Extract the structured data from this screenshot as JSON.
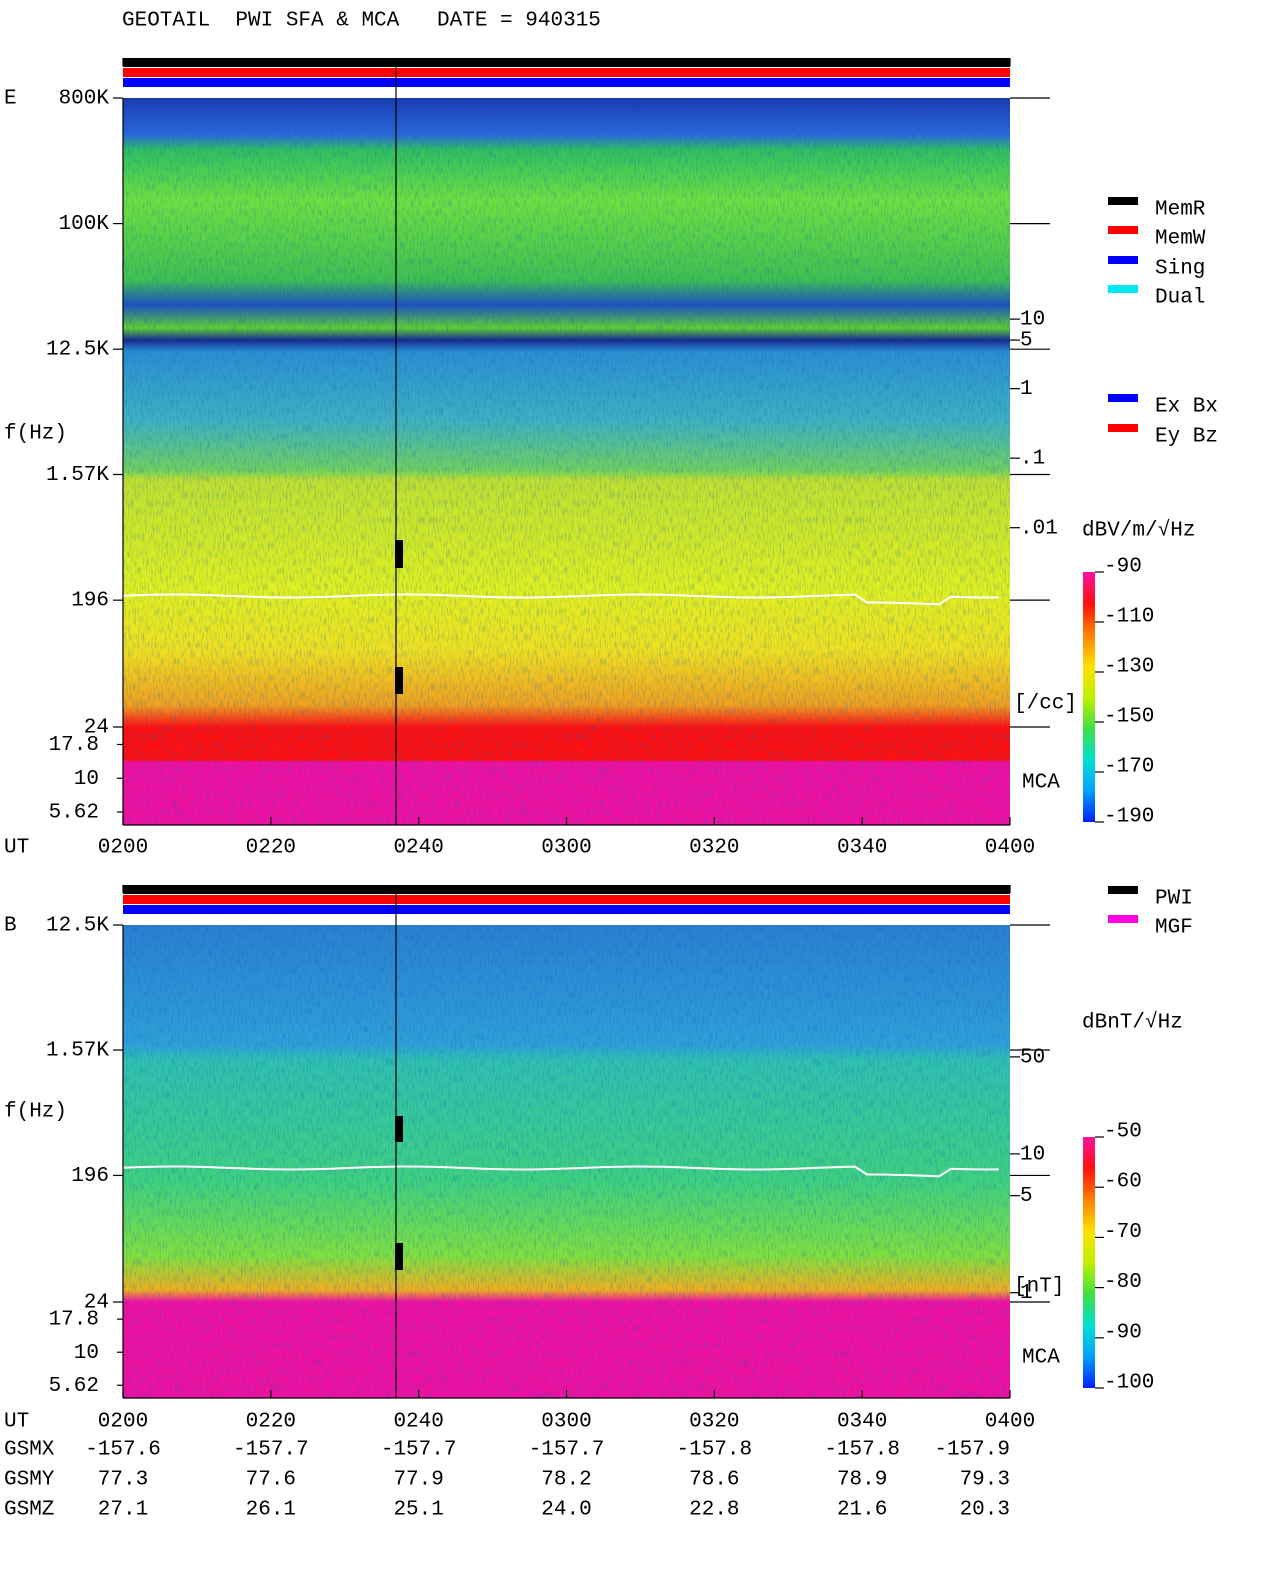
{
  "chart_data": [
    {
      "type": "spectrogram",
      "title": "GEOTAIL  PWI SFA & MCA   DATE = 940315",
      "panel_label": "E",
      "y_label": "f(Hz)",
      "x_label": "UT",
      "y_scale": "log",
      "ylim": [
        24,
        800000
      ],
      "yticks": [
        {
          "value": 800000,
          "label": "800K"
        },
        {
          "value": 100000,
          "label": "100K"
        },
        {
          "value": 12500,
          "label": "12.5K"
        },
        {
          "value": 1570,
          "label": "1.57K"
        },
        196,
        24
      ],
      "mca_label": "MCA",
      "mca_ylim": [
        4.5,
        24
      ],
      "mca_yticks": [
        17.8,
        10,
        5.62
      ],
      "xlim": [
        120,
        240
      ],
      "xticks": [
        {
          "value": 120,
          "label": "0200"
        },
        {
          "value": 140,
          "label": "0220"
        },
        {
          "value": 160,
          "label": "0240"
        },
        {
          "value": 180,
          "label": "0300"
        },
        {
          "value": 200,
          "label": "0320"
        },
        {
          "value": 220,
          "label": "0340"
        },
        {
          "value": 240,
          "label": "0400"
        }
      ],
      "y2_scale": "log",
      "y2lim": [
        1.36e-05,
        15150
      ],
      "y2ticks": [
        10,
        5,
        1,
        {
          "value": 0.1,
          "label": ".1"
        },
        {
          "value": 0.01,
          "label": ".01"
        }
      ],
      "y2_label": "[/cc]",
      "colorbar": {
        "label": "dBV/m/√Hz",
        "clim": [
          -190,
          -90
        ],
        "ticks": [
          -90,
          -110,
          -130,
          -150,
          -170,
          -190
        ]
      },
      "legend": [
        {
          "name": "MemR",
          "color": "#000000"
        },
        {
          "name": "MemW",
          "color": "#ff0000"
        },
        {
          "name": "Sing",
          "color": "#0000ff"
        },
        {
          "name": "Dual",
          "color": "#00e8f0"
        }
      ],
      "legend2": [
        {
          "name": "Ex Bx",
          "color": "#0000ff"
        },
        {
          "name": "Ey Bz",
          "color": "#ff0000"
        }
      ]
    },
    {
      "type": "spectrogram",
      "panel_label": "B",
      "y_label": "f(Hz)",
      "x_label": "UT",
      "y_scale": "log",
      "ylim": [
        24,
        12500
      ],
      "yticks": [
        {
          "value": 12500,
          "label": "12.5K"
        },
        {
          "value": 1570,
          "label": "1.57K"
        },
        196,
        24
      ],
      "mca_label": "MCA",
      "mca_ylim": [
        4.5,
        24
      ],
      "mca_yticks": [
        17.8,
        10,
        5.62
      ],
      "xlim": [
        120,
        240
      ],
      "xticks": [
        {
          "value": 120,
          "label": "0200"
        },
        {
          "value": 140,
          "label": "0220"
        },
        {
          "value": 160,
          "label": "0240"
        },
        {
          "value": 180,
          "label": "0300"
        },
        {
          "value": 200,
          "label": "0320"
        },
        {
          "value": 220,
          "label": "0340"
        },
        {
          "value": 240,
          "label": "0400"
        }
      ],
      "y2_scale": "log",
      "y2lim": [
        0.857,
        446
      ],
      "y2ticks": [
        50,
        10,
        5,
        1
      ],
      "y2_label": "[nT]",
      "colorbar": {
        "label": "dBnT/√Hz",
        "clim": [
          -100,
          -50
        ],
        "ticks": [
          -50,
          -60,
          -70,
          -80,
          -90,
          -100
        ]
      },
      "legend": [
        {
          "name": "PWI",
          "color": "#000000"
        },
        {
          "name": "MGF",
          "color": "#ff00e0"
        }
      ]
    }
  ],
  "orbit": {
    "rows": [
      {
        "name": "GSMX",
        "values": [
          "-157.6",
          "-157.7",
          "-157.7",
          "-157.7",
          "-157.8",
          "-157.8",
          "-157.9"
        ]
      },
      {
        "name": "GSMY",
        "values": [
          "77.3",
          "77.6",
          "77.9",
          "78.2",
          "78.6",
          "78.9",
          "79.3"
        ]
      },
      {
        "name": "GSMZ",
        "values": [
          "27.1",
          "26.1",
          "25.1",
          "24.0",
          "22.8",
          "21.6",
          "20.3"
        ]
      }
    ]
  }
}
